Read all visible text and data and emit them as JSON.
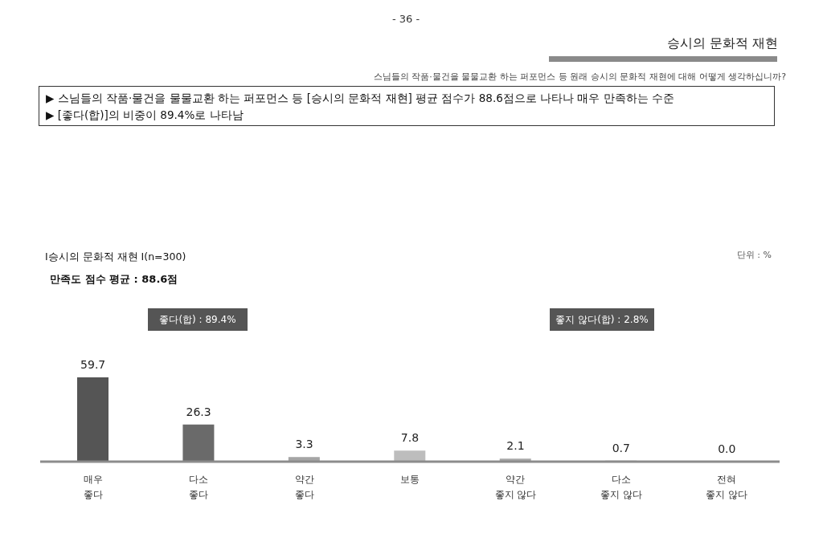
{
  "chart_data": {
    "type": "bar",
    "title": "I승시의 문화적 재현 I(n=300)",
    "subtitle": "만족도 점수 평균 : 88.6점",
    "annotations": [
      "- 36 -",
      "승시의 문화적 재현",
      "스님들의 작품·물건을 물물교환 하는 퍼포먼스 등 원래 승시의 문화적 재현에 대해 어떻게 생각하십니까?",
      "▶ 스님들의 작품·물건을 물물교환 하는 퍼포먼스 등 [승시의 문화적 재현] 평균 점수가 88.6점으로 나타나 매우 만족하는 수준",
      "▶ [좋다(합)]의 비중이 89.4%로 나타남",
      "단위 : %",
      "좋다(합) : 89.4%",
      "좋지 않다(합) : 2.8%"
    ],
    "categories": [
      "매우 좋다",
      "다소 좋다",
      "약간 좋다",
      "보통",
      "약간 좋지 않다",
      "다소 좋지 않다",
      "전혀 좋지 않다"
    ],
    "values": [
      59.7,
      26.3,
      3.3,
      7.8,
      2.1,
      0.7,
      0.0
    ],
    "colors": [
      "#555555",
      "#6a6a6a",
      "#a5a5a5",
      "#bdbdbd",
      "#a8a8a8",
      "#b0b0b0",
      "#b0b0b0"
    ],
    "value_labels": [
      "59.7",
      "26.3",
      "3.3",
      "7.8",
      "2.1",
      "0.7",
      "0.0"
    ],
    "grid": false,
    "legend": false
  }
}
